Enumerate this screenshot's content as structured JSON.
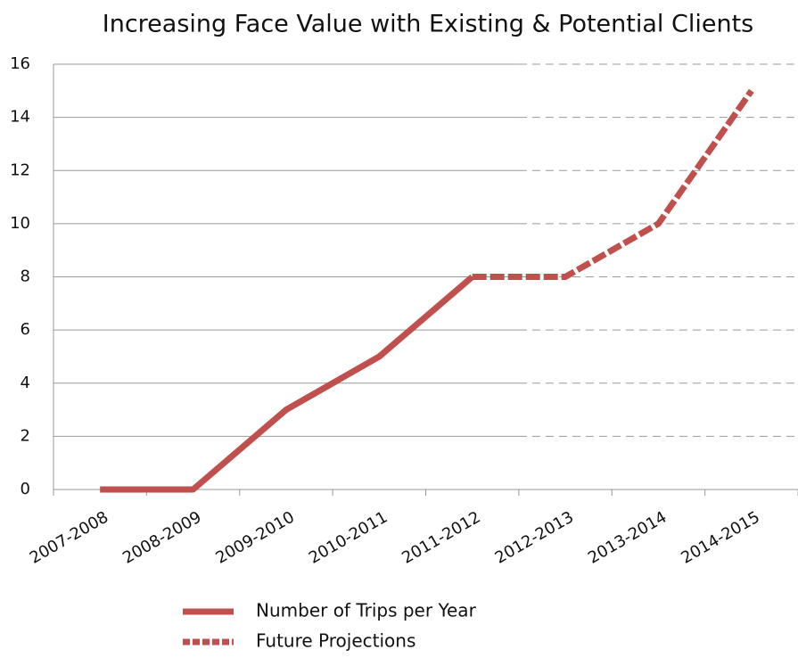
{
  "chart_data": {
    "type": "line",
    "title": "Increasing Face Value with Existing & Potential Clients",
    "categories": [
      "2007-2008",
      "2008-2009",
      "2009-2010",
      "2010-2011",
      "2011-2012",
      "2012-2013",
      "2013-2014",
      "2014-2015"
    ],
    "series": [
      {
        "name": "Number of Trips per Year",
        "color": "#c0504d",
        "dashed": false,
        "values": [
          0,
          0,
          3,
          5,
          8,
          null,
          null,
          null
        ]
      },
      {
        "name": "Future Projections",
        "color": "#c0504d",
        "dashed": true,
        "values": [
          null,
          null,
          null,
          null,
          8,
          8,
          10,
          15
        ]
      }
    ],
    "ylim": [
      0,
      16
    ],
    "yticks": [
      0,
      2,
      4,
      6,
      8,
      10,
      12,
      14,
      16
    ],
    "grid": true
  }
}
